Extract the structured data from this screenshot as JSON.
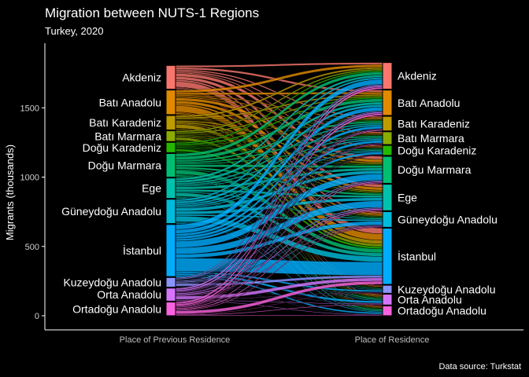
{
  "chart_data": {
    "type": "alluvial",
    "title": "Migration between NUTS-1 Regions",
    "subtitle": "Turkey, 2020",
    "caption": "Data source: Turkstat",
    "ylabel": "Migrants (thousands)",
    "ylim": [
      0,
      1900
    ],
    "yticks": [
      0,
      500,
      1000,
      1500
    ],
    "axes": [
      "Place of Previous Residence",
      "Place of Residence"
    ],
    "grid": false,
    "regions": [
      {
        "name": "Akdeniz",
        "color": "#F8766D",
        "origin": 171,
        "destination": 192
      },
      {
        "name": "Batı Anadolu",
        "color": "#E18A00",
        "origin": 177,
        "destination": 183
      },
      {
        "name": "Batı Karadeniz",
        "color": "#BE9C00",
        "origin": 104,
        "destination": 105
      },
      {
        "name": "Batı Marmara",
        "color": "#8CAB00",
        "origin": 77,
        "destination": 92
      },
      {
        "name": "Doğu Karadeniz",
        "color": "#24B700",
        "origin": 74,
        "destination": 72
      },
      {
        "name": "Doğu Marmara",
        "color": "#00BE70",
        "origin": 170,
        "destination": 195
      },
      {
        "name": "Ege",
        "color": "#00C1AB",
        "origin": 147,
        "destination": 191
      },
      {
        "name": "Güneydoğu Anadolu",
        "color": "#00BBDA",
        "origin": 175,
        "destination": 113
      },
      {
        "name": "İstanbul",
        "color": "#00ACFC",
        "origin": 376,
        "destination": 405
      },
      {
        "name": "Kuzeydoğu Anadolu",
        "color": "#8B93FF",
        "origin": 70,
        "destination": 58
      },
      {
        "name": "Orta Anadolu",
        "color": "#D575FE",
        "origin": 94,
        "destination": 78
      },
      {
        "name": "Ortadoğu Anadolu",
        "color": "#F962DD",
        "origin": 99,
        "destination": 71
      }
    ]
  }
}
